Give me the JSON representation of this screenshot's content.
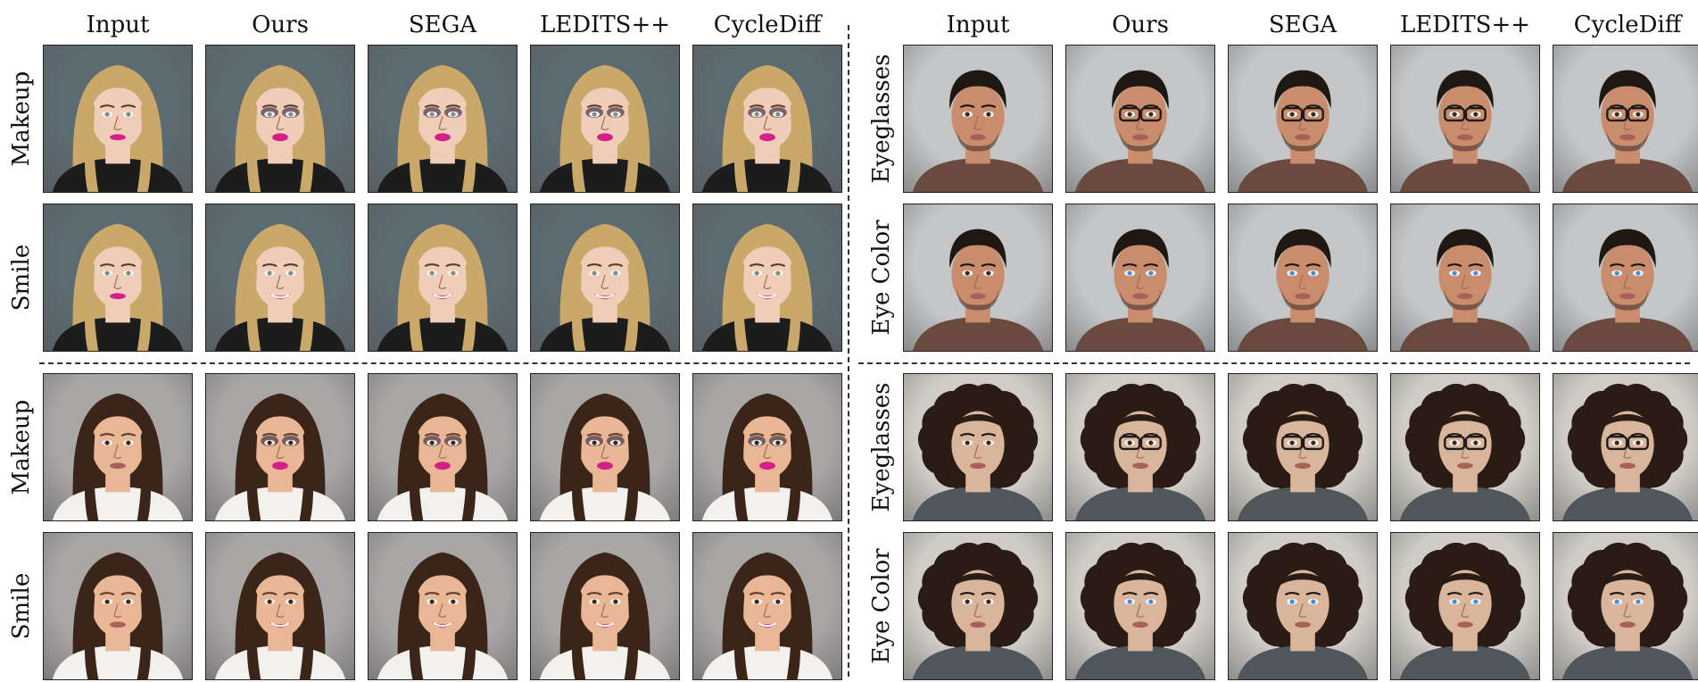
{
  "figure": {
    "left_panel": {
      "column_headers": [
        "Input",
        "Ours",
        "SEGA",
        "LEDITS++",
        "CycleDiff"
      ],
      "rows": [
        {
          "label": "Makeup",
          "subject": "blonde-woman",
          "edits": [
            "none",
            "makeup",
            "makeup",
            "makeup",
            "makeup"
          ]
        },
        {
          "label": "Smile",
          "subject": "blonde-woman",
          "edits": [
            "none",
            "smile",
            "smile",
            "smile",
            "smile"
          ]
        },
        {
          "label": "Makeup",
          "subject": "brunette-woman",
          "edits": [
            "none",
            "makeup",
            "makeup",
            "makeup",
            "makeup"
          ]
        },
        {
          "label": "Smile",
          "subject": "brunette-woman",
          "edits": [
            "none",
            "smile",
            "smile",
            "smile",
            "smile"
          ]
        }
      ]
    },
    "right_panel": {
      "column_headers": [
        "Input",
        "Ours",
        "SEGA",
        "LEDITS++",
        "CycleDiff"
      ],
      "rows": [
        {
          "label": "Eyeglasses",
          "subject": "short-haired-man",
          "edits": [
            "none",
            "eyeglasses",
            "eyeglasses",
            "eyeglasses",
            "eyeglasses"
          ]
        },
        {
          "label": "Eye Color",
          "subject": "short-haired-man",
          "edits": [
            "none",
            "eye-color",
            "eye-color",
            "eye-color",
            "eye-color"
          ]
        },
        {
          "label": "Eyeglasses",
          "subject": "curly-haired-man",
          "edits": [
            "none",
            "eyeglasses",
            "eyeglasses",
            "eyeglasses",
            "eyeglasses"
          ]
        },
        {
          "label": "Eye Color",
          "subject": "curly-haired-man",
          "edits": [
            "none",
            "eye-color",
            "eye-color",
            "eye-color",
            "eye-color"
          ]
        }
      ]
    }
  },
  "colors": {
    "divider": "#333333",
    "blonde_bg": "#5c6a72",
    "brunette_bg": "#a9a7a6",
    "man_bg": "#c4c6c8",
    "curly_bg": "#d0cdc6",
    "lipstick": "#d41f8a",
    "iris_blue": "#3f8fe0"
  }
}
